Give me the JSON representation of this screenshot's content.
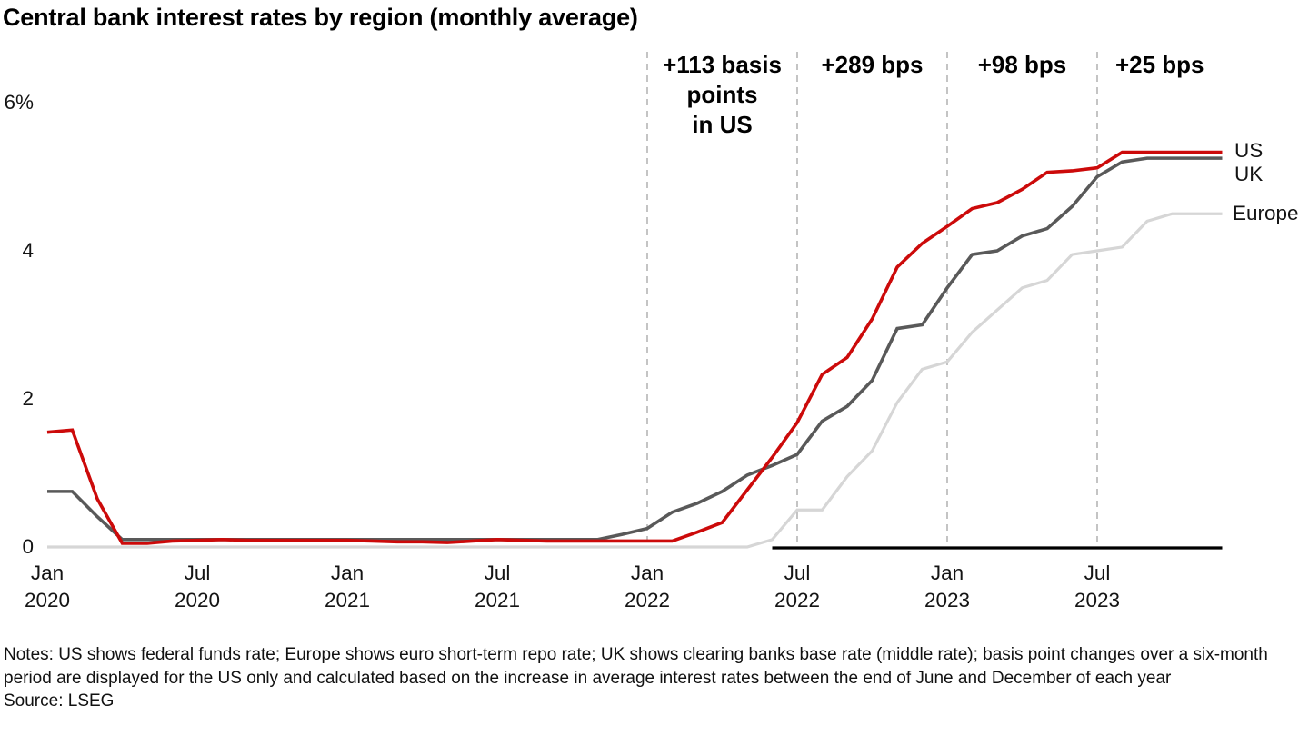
{
  "title": "Central bank interest rates by region (monthly average)",
  "notes": "Notes: US shows federal funds rate; Europe shows euro short-term repo rate; UK shows clearing banks base rate (middle rate); basis point changes over a six-month period are displayed for the US only and calculated based on the increase in average interest rates between the end of June and December of each year",
  "source": "Source: LSEG",
  "chart_data": {
    "type": "line",
    "unit": "percent",
    "title": "Central bank interest rates by region (monthly average)",
    "ylim": [
      0,
      6
    ],
    "grid": false,
    "legend_position": "right-end-labels",
    "months": [
      "2020-01",
      "2020-02",
      "2020-03",
      "2020-04",
      "2020-05",
      "2020-06",
      "2020-07",
      "2020-08",
      "2020-09",
      "2020-10",
      "2020-11",
      "2020-12",
      "2021-01",
      "2021-02",
      "2021-03",
      "2021-04",
      "2021-05",
      "2021-06",
      "2021-07",
      "2021-08",
      "2021-09",
      "2021-10",
      "2021-11",
      "2021-12",
      "2022-01",
      "2022-02",
      "2022-03",
      "2022-04",
      "2022-05",
      "2022-06",
      "2022-07",
      "2022-08",
      "2022-09",
      "2022-10",
      "2022-11",
      "2022-12",
      "2023-01",
      "2023-02",
      "2023-03",
      "2023-04",
      "2023-05",
      "2023-06",
      "2023-07",
      "2023-08",
      "2023-09",
      "2023-10",
      "2023-11",
      "2023-12"
    ],
    "series": [
      {
        "name": "US",
        "color": "#cc0a0a",
        "values": [
          1.55,
          1.58,
          0.65,
          0.05,
          0.05,
          0.08,
          0.09,
          0.1,
          0.09,
          0.09,
          0.09,
          0.09,
          0.09,
          0.08,
          0.07,
          0.07,
          0.06,
          0.08,
          0.1,
          0.09,
          0.08,
          0.08,
          0.08,
          0.08,
          0.08,
          0.08,
          0.2,
          0.33,
          0.77,
          1.21,
          1.68,
          2.33,
          2.56,
          3.08,
          3.78,
          4.1,
          4.33,
          4.57,
          4.65,
          4.83,
          5.06,
          5.08,
          5.12,
          5.33,
          5.33,
          5.33,
          5.33,
          5.33
        ]
      },
      {
        "name": "UK",
        "color": "#595959",
        "values": [
          0.75,
          0.75,
          0.41,
          0.1,
          0.1,
          0.1,
          0.1,
          0.1,
          0.1,
          0.1,
          0.1,
          0.1,
          0.1,
          0.1,
          0.1,
          0.1,
          0.1,
          0.1,
          0.1,
          0.1,
          0.1,
          0.1,
          0.1,
          0.17,
          0.25,
          0.47,
          0.59,
          0.75,
          0.97,
          1.1,
          1.25,
          1.7,
          1.9,
          2.25,
          2.95,
          3.0,
          3.5,
          3.95,
          4.0,
          4.2,
          4.3,
          4.6,
          5.0,
          5.2,
          5.25,
          5.25,
          5.25,
          5.25
        ]
      },
      {
        "name": "Europe",
        "color": "#d6d6d6",
        "values": [
          0,
          0,
          0,
          0,
          0,
          0,
          0,
          0,
          0,
          0,
          0,
          0,
          0,
          0,
          0,
          0,
          0,
          0,
          0,
          0,
          0,
          0,
          0,
          0,
          0,
          0,
          0,
          0,
          0,
          0.1,
          0.5,
          0.5,
          0.95,
          1.3,
          1.95,
          2.4,
          2.5,
          2.9,
          3.2,
          3.5,
          3.6,
          3.95,
          4.0,
          4.05,
          4.4,
          4.5,
          4.5,
          4.5
        ]
      }
    ],
    "yticks": [
      {
        "v": 6,
        "label": "6%"
      },
      {
        "v": 4,
        "label": "4"
      },
      {
        "v": 2,
        "label": "2"
      },
      {
        "v": 0,
        "label": "0"
      }
    ],
    "xticks": [
      {
        "m": 0,
        "line1": "Jan",
        "line2": "2020"
      },
      {
        "m": 6,
        "line1": "Jul",
        "line2": "2020"
      },
      {
        "m": 12,
        "line1": "Jan",
        "line2": "2021"
      },
      {
        "m": 18,
        "line1": "Jul",
        "line2": "2021"
      },
      {
        "m": 24,
        "line1": "Jan",
        "line2": "2022"
      },
      {
        "m": 30,
        "line1": "Jul",
        "line2": "2022"
      },
      {
        "m": 36,
        "line1": "Jan",
        "line2": "2023"
      },
      {
        "m": 42,
        "line1": "Jul",
        "line2": "2023"
      }
    ],
    "dashed_month_indices": [
      24,
      30,
      36,
      42
    ],
    "baseline_start_month_index": 29,
    "annotations": [
      {
        "label": "+113 basis\npoints\nin US",
        "from_m": 24,
        "to_m": 30,
        "period": "Jan 2022 - Jun 2022"
      },
      {
        "label": "+289 bps",
        "from_m": 30,
        "to_m": 36,
        "period": "Jul 2022 - Dec 2022"
      },
      {
        "label": "+98 bps",
        "from_m": 36,
        "to_m": 42,
        "period": "Jan 2023 - Jun 2023"
      },
      {
        "label": "+25 bps",
        "from_m": 42,
        "to_m": 47,
        "period": "Jul 2023 - Dec 2023"
      }
    ]
  }
}
